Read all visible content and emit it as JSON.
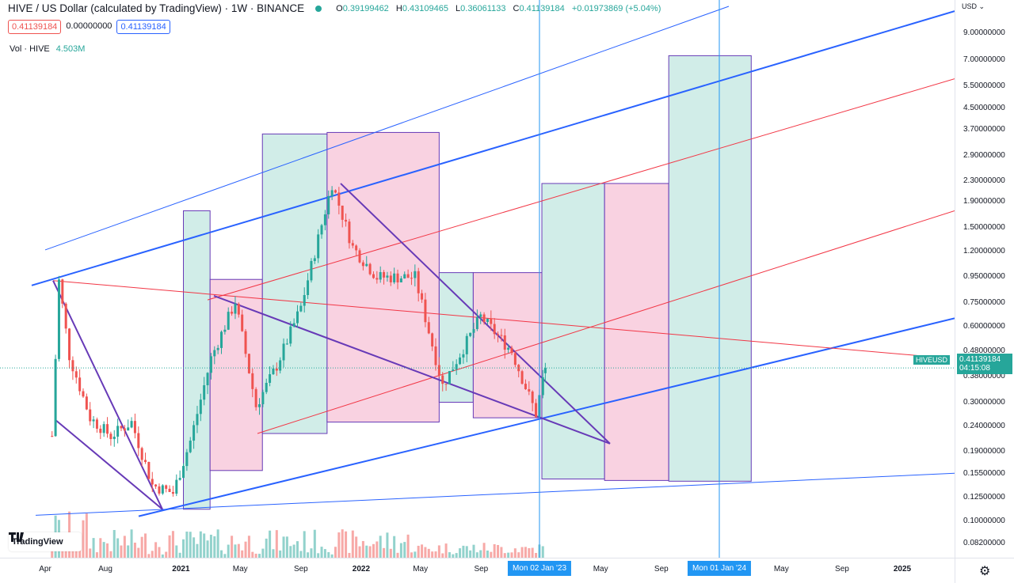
{
  "header": {
    "title": "HIVE / US Dollar (calculated by TradingView) · 1W · BINANCE",
    "open_label": "O",
    "open": "0.39199462",
    "high_label": "H",
    "high": "0.43109465",
    "low_label": "L",
    "low": "0.36061133",
    "close_label": "C",
    "close": "0.41139184",
    "change": "+0.01973869 (+5.04%)"
  },
  "price_boxes": [
    "0.41139184",
    "0.00000000",
    "0.41139184"
  ],
  "volume": {
    "label": "Vol · HIVE",
    "value": "4.503M"
  },
  "price_axis": {
    "currency": "USD",
    "ticks": [
      "9.00000000",
      "7.00000000",
      "5.50000000",
      "4.50000000",
      "3.70000000",
      "2.90000000",
      "2.30000000",
      "1.90000000",
      "1.50000000",
      "1.20000000",
      "0.95000000",
      "0.75000000",
      "0.60000000",
      "0.48000000",
      "0.38000000",
      "0.30000000",
      "0.24000000",
      "0.19000000",
      "0.15500000",
      "0.12500000",
      "0.10000000",
      "0.08200000"
    ],
    "last_price": "0.41139184",
    "countdown": "04:15:08",
    "symbol": "HIVEUSD"
  },
  "time_axis": {
    "ticks": [
      "Apr",
      "Aug",
      "2021",
      "May",
      "Sep",
      "2022",
      "May",
      "Sep",
      "May",
      "Sep",
      "May",
      "Sep",
      "2025"
    ],
    "badges": [
      "Mon 02 Jan '23",
      "Mon 01 Jan '24"
    ]
  },
  "logo": {
    "text": "TradingView",
    "icon": "tradingview-logo-icon"
  },
  "settings_icon": "gear-icon",
  "colors": {
    "up": "#26a69a",
    "down": "#ef5350",
    "trend_blue": "#2962ff",
    "fib_red": "#f23645",
    "triangle_purple": "#673ab7",
    "box_green": "#d1ede8",
    "box_pink": "#f9d2e1"
  },
  "chart_data": {
    "type": "candlestick",
    "symbol": "HIVEUSD",
    "exchange": "BINANCE",
    "interval": "1W",
    "y_scale": "log",
    "ylim": [
      0.076,
      11.5
    ],
    "last": 0.41139184,
    "ohlc_last": {
      "open": 0.39199462,
      "high": 0.43109465,
      "low": 0.36061133,
      "close": 0.41139184
    },
    "series": [
      {
        "name": "HIVE / US Dollar",
        "points": [
          {
            "date": "2020-04-15",
            "close": 0.22
          },
          {
            "date": "2020-04-29",
            "close": 0.92
          },
          {
            "date": "2020-05-20",
            "close": 0.46
          },
          {
            "date": "2020-07-01",
            "close": 0.26
          },
          {
            "date": "2020-08-12",
            "close": 0.22
          },
          {
            "date": "2020-09-23",
            "close": 0.25
          },
          {
            "date": "2020-11-04",
            "close": 0.14
          },
          {
            "date": "2020-12-16",
            "close": 0.13
          },
          {
            "date": "2021-01-20",
            "close": 0.21
          },
          {
            "date": "2021-03-03",
            "close": 0.45
          },
          {
            "date": "2021-04-21",
            "close": 0.76
          },
          {
            "date": "2021-06-02",
            "close": 0.29
          },
          {
            "date": "2021-07-14",
            "close": 0.42
          },
          {
            "date": "2021-09-01",
            "close": 0.72
          },
          {
            "date": "2021-11-03",
            "close": 2.25
          },
          {
            "date": "2021-12-15",
            "close": 1.25
          },
          {
            "date": "2022-02-02",
            "close": 0.95
          },
          {
            "date": "2022-04-20",
            "close": 0.95
          },
          {
            "date": "2022-06-15",
            "close": 0.35
          },
          {
            "date": "2022-08-31",
            "close": 0.66
          },
          {
            "date": "2022-11-02",
            "close": 0.48
          },
          {
            "date": "2022-12-21",
            "close": 0.27
          },
          {
            "date": "2023-01-09",
            "close": 0.41139184
          }
        ]
      }
    ]
  }
}
